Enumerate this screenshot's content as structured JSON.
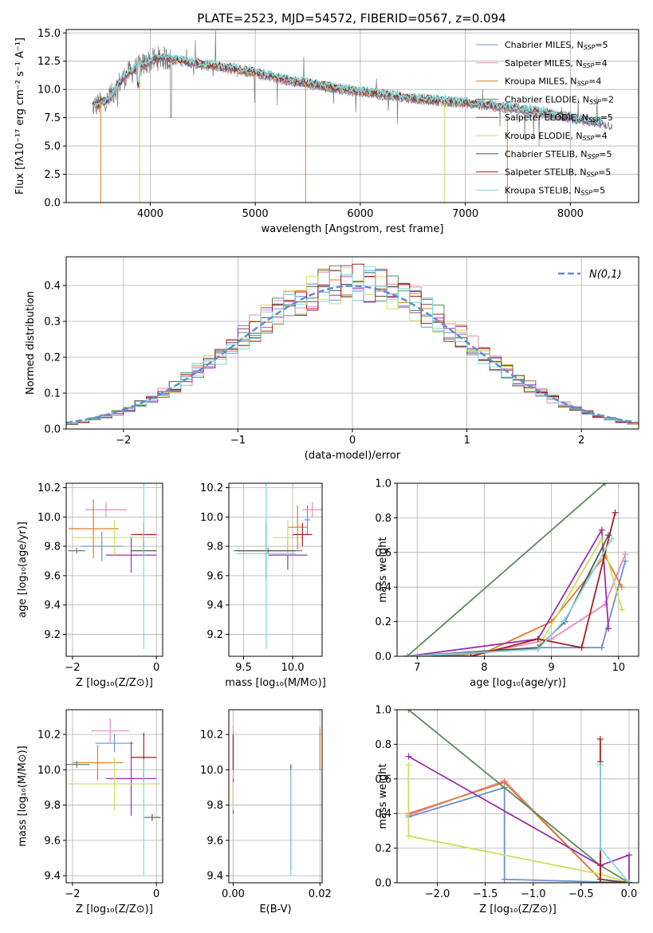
{
  "title": "PLATE=2523, MJD=54572, FIBERID=0567, z=0.094",
  "chart_data": [
    {
      "id": "spectrum",
      "type": "line",
      "xlabel": "wavelength [Angstrom, rest frame]",
      "ylabel": "Flux [fλ10⁻¹⁷ erg cm⁻² s⁻¹ A⁻¹]",
      "xlim": [
        3200,
        8650
      ],
      "ylim": [
        0,
        15.3
      ],
      "xticks": [
        4000,
        5000,
        6000,
        7000,
        8000
      ],
      "yticks": [
        0.0,
        2.5,
        5.0,
        7.5,
        10.0,
        12.5,
        15.0
      ],
      "legend": [
        {
          "label": "Chabrier MILES, N",
          "sub": "SSP",
          "suffix": "=5",
          "color": "#6b8fd6"
        },
        {
          "label": "Salpeter MILES, N",
          "sub": "SSP",
          "suffix": "=4",
          "color": "#e38cbf"
        },
        {
          "label": "Kroupa MILES, N",
          "sub": "SSP",
          "suffix": "=4",
          "color": "#e07b2a"
        },
        {
          "label": "Chabrier ELODIE, N",
          "sub": "SSP",
          "suffix": "=2",
          "color": "#5c8a5c"
        },
        {
          "label": "Salpeter ELODIE, N",
          "sub": "SSP",
          "suffix": "=5",
          "color": "#9b2fb0"
        },
        {
          "label": "Kroupa ELODIE, N",
          "sub": "SSP",
          "suffix": "=4",
          "color": "#c9e05a"
        },
        {
          "label": "Chabrier STELIB, N",
          "sub": "SSP",
          "suffix": "=5",
          "color": "#555555"
        },
        {
          "label": "Salpeter STELIB, N",
          "sub": "SSP",
          "suffix": "=5",
          "color": "#a51f1f"
        },
        {
          "label": "Kroupa STELIB, N",
          "sub": "SSP",
          "suffix": "=5",
          "color": "#7fd8de"
        }
      ],
      "continuum": {
        "x": [
          3450,
          3600,
          3700,
          3800,
          3900,
          4000,
          4100,
          4300,
          4500,
          4800,
          5000,
          5200,
          5500,
          6000,
          6500,
          7000,
          7500,
          8000,
          8400
        ],
        "y": [
          8.5,
          9.0,
          10.5,
          11.5,
          12.0,
          12.5,
          12.8,
          12.5,
          12.2,
          11.8,
          11.5,
          11.0,
          10.5,
          9.8,
          9.2,
          8.8,
          8.3,
          7.5,
          6.8
        ]
      },
      "data_line": {
        "name": "data",
        "color": "#777777"
      }
    },
    {
      "id": "residuals",
      "type": "histogram",
      "xlabel": "(data-model)/error",
      "ylabel": "Normed distribution",
      "xlim": [
        -2.5,
        2.5
      ],
      "ylim": [
        0,
        0.48
      ],
      "xticks": [
        -2,
        -1,
        0,
        1,
        2
      ],
      "yticks": [
        0.0,
        0.1,
        0.2,
        0.3,
        0.4
      ],
      "legend": "N(0,1)",
      "gaussian": {
        "mean": 0,
        "sigma": 1,
        "color": "#5b8fd8"
      },
      "bin_width": 0.1
    },
    {
      "id": "age-vs-Z",
      "type": "scatter",
      "xlabel": "Z [log₁₀(Z/Z⊙)]",
      "ylabel": "age  [log₁₀(age/yr)]",
      "xlim": [
        -2.15,
        0.15
      ],
      "ylim": [
        9.05,
        10.23
      ],
      "xticks": [
        -2,
        0
      ],
      "yticks": [
        9.2,
        9.4,
        9.6,
        9.8,
        10.0,
        10.2
      ],
      "points": [
        {
          "x": -1.3,
          "y": 9.8,
          "xerr": 0.5,
          "yerr": 0.1,
          "color": "#6b8fd6"
        },
        {
          "x": -1.2,
          "y": 10.05,
          "xerr": 0.5,
          "yerr": 0.05,
          "color": "#e38cbf"
        },
        {
          "x": -1.5,
          "y": 9.92,
          "xerr": 0.6,
          "yerr": 0.2,
          "color": "#e07b2a"
        },
        {
          "x": -1.9,
          "y": 9.77,
          "xerr": 0.2,
          "yerr": 0.02,
          "color": "#5c8a5c"
        },
        {
          "x": -0.6,
          "y": 9.74,
          "xerr": 0.6,
          "yerr": 0.12,
          "color": "#9b2fb0"
        },
        {
          "x": -1.0,
          "y": 9.86,
          "xerr": 1.0,
          "yerr": 0.12,
          "color": "#c9e05a"
        },
        {
          "x": -0.3,
          "y": 9.77,
          "xerr": 0.3,
          "yerr": 0.05,
          "color": "#555555"
        },
        {
          "x": -0.3,
          "y": 9.88,
          "xerr": 0.3,
          "yerr": 0.08,
          "color": "#a51f1f"
        },
        {
          "x": -0.3,
          "y": 9.75,
          "xerr": 0.02,
          "yerr": 0.65,
          "color": "#7fd8de"
        }
      ]
    },
    {
      "id": "age-vs-mass",
      "type": "scatter",
      "xlabel": "mass [log₁₀(M/M⊙)]",
      "ylabel": "",
      "xlim": [
        9.35,
        10.3
      ],
      "ylim": [
        9.05,
        10.23
      ],
      "xticks": [
        9.5,
        10.0
      ],
      "yticks": [
        9.2,
        9.4,
        9.6,
        9.8,
        10.0,
        10.2
      ],
      "points": [
        {
          "x": 10.15,
          "y": 9.98,
          "xerr": 0.03,
          "yerr": 0.1,
          "color": "#6b8fd6"
        },
        {
          "x": 10.2,
          "y": 10.05,
          "xerr": 0.1,
          "yerr": 0.05,
          "color": "#e38cbf"
        },
        {
          "x": 10.05,
          "y": 9.93,
          "xerr": 0.1,
          "yerr": 0.15,
          "color": "#e07b2a"
        },
        {
          "x": 9.75,
          "y": 9.77,
          "xerr": 0.35,
          "yerr": 0.02,
          "color": "#5c8a5c"
        },
        {
          "x": 9.95,
          "y": 9.74,
          "xerr": 0.2,
          "yerr": 0.1,
          "color": "#9b2fb0"
        },
        {
          "x": 9.95,
          "y": 9.86,
          "xerr": 0.15,
          "yerr": 0.12,
          "color": "#c9e05a"
        },
        {
          "x": 9.73,
          "y": 9.77,
          "xerr": 0.3,
          "yerr": 0.2,
          "color": "#555555"
        },
        {
          "x": 10.1,
          "y": 9.88,
          "xerr": 0.1,
          "yerr": 0.08,
          "color": "#a51f1f"
        },
        {
          "x": 9.73,
          "y": 9.75,
          "xerr": 0.3,
          "yerr": 0.65,
          "color": "#7fd8de"
        }
      ]
    },
    {
      "id": "massweight-vs-age",
      "type": "line",
      "xlabel": "age  [log₁₀(age/yr)]",
      "ylabel": "mass weight",
      "xlim": [
        6.7,
        10.3
      ],
      "ylim": [
        0,
        1.0
      ],
      "xticks": [
        7,
        8,
        9,
        10
      ],
      "yticks": [
        0.0,
        0.2,
        0.4,
        0.6,
        0.8,
        1.0
      ],
      "series": [
        {
          "color": "#6b8fd6",
          "x": [
            6.85,
            7.7,
            8.8,
            9.75,
            10.1
          ],
          "y": [
            0.0,
            0.01,
            0.05,
            0.05,
            0.55
          ]
        },
        {
          "color": "#e38cbf",
          "x": [
            6.85,
            8.0,
            9.0,
            9.8,
            10.1
          ],
          "y": [
            0.0,
            0.02,
            0.1,
            0.3,
            0.59
          ]
        },
        {
          "color": "#e07b2a",
          "x": [
            6.85,
            8.0,
            9.0,
            9.8,
            10.05
          ],
          "y": [
            0.0,
            0.02,
            0.2,
            0.58,
            0.4
          ]
        },
        {
          "color": "#5c8a5c",
          "x": [
            6.85,
            9.8
          ],
          "y": [
            0.0,
            1.0
          ]
        },
        {
          "color": "#9b2fb0",
          "x": [
            6.85,
            8.8,
            9.75,
            9.85
          ],
          "y": [
            0.0,
            0.1,
            0.73,
            0.16
          ]
        },
        {
          "color": "#c9e05a",
          "x": [
            6.85,
            8.8,
            9.75,
            10.05
          ],
          "y": [
            0.0,
            0.05,
            0.68,
            0.27
          ]
        },
        {
          "color": "#555555",
          "x": [
            6.85,
            8.8,
            9.2,
            9.85
          ],
          "y": [
            0.0,
            0.05,
            0.2,
            0.7
          ]
        },
        {
          "color": "#a51f1f",
          "x": [
            6.85,
            7.8,
            8.8,
            9.45,
            9.95
          ],
          "y": [
            0.0,
            0.0,
            0.1,
            0.05,
            0.83
          ]
        },
        {
          "color": "#7fd8de",
          "x": [
            6.85,
            8.8,
            9.2,
            9.9
          ],
          "y": [
            0.0,
            0.04,
            0.21,
            0.68
          ]
        }
      ]
    },
    {
      "id": "mass-vs-Z",
      "type": "scatter",
      "xlabel": "Z [log₁₀(Z/Z⊙)]",
      "ylabel": "mass [log₁₀(M/M⊙)]",
      "xlim": [
        -2.15,
        0.15
      ],
      "ylim": [
        9.36,
        10.34
      ],
      "xticks": [
        -2,
        0
      ],
      "yticks": [
        9.4,
        9.6,
        9.8,
        10.0,
        10.2
      ],
      "points": [
        {
          "x": -1.0,
          "y": 10.15,
          "xerr": 0.45,
          "yerr": 0.05,
          "color": "#6b8fd6"
        },
        {
          "x": -1.1,
          "y": 10.22,
          "xerr": 0.45,
          "yerr": 0.07,
          "color": "#e38cbf"
        },
        {
          "x": -1.4,
          "y": 10.04,
          "xerr": 0.6,
          "yerr": 0.1,
          "color": "#e07b2a"
        },
        {
          "x": -1.9,
          "y": 10.03,
          "xerr": 0.3,
          "yerr": 0.02,
          "color": "#5c8a5c"
        },
        {
          "x": -0.6,
          "y": 9.95,
          "xerr": 0.6,
          "yerr": 0.21,
          "color": "#9b2fb0"
        },
        {
          "x": -1.0,
          "y": 9.92,
          "xerr": 1.1,
          "yerr": 0.15,
          "color": "#c9e05a"
        },
        {
          "x": -0.1,
          "y": 9.73,
          "xerr": 0.2,
          "yerr": 0.02,
          "color": "#555555"
        },
        {
          "x": -0.3,
          "y": 10.07,
          "xerr": 0.3,
          "yerr": 0.14,
          "color": "#a51f1f"
        },
        {
          "x": -0.3,
          "y": 9.73,
          "xerr": 0.02,
          "yerr": 0.33,
          "color": "#7fd8de"
        }
      ]
    },
    {
      "id": "mass-vs-EBV",
      "type": "scatter",
      "xlabel": "E(B-V)",
      "ylabel": "",
      "xlim": [
        -0.001,
        0.0205
      ],
      "ylim": [
        9.36,
        10.34
      ],
      "xticks": [
        0.0,
        0.02
      ],
      "xtick_labels": [
        "0.00",
        "0.02"
      ],
      "yticks": [
        9.4,
        9.6,
        9.8,
        10.0,
        10.2
      ],
      "points": [
        {
          "x": 0.0,
          "y": 10.1,
          "xerr": 0,
          "yerr": 0.15,
          "color": "#e38cbf"
        },
        {
          "x": 0.0,
          "y": 10.1,
          "xerr": 0,
          "yerr": 0.1,
          "color": "#a51f1f"
        },
        {
          "x": 0.0,
          "y": 9.85,
          "xerr": 0,
          "yerr": 0.1,
          "color": "#9b2fb0"
        },
        {
          "x": 0.0,
          "y": 9.85,
          "xerr": 0,
          "yerr": 0.08,
          "color": "#c9e05a"
        },
        {
          "x": 0.0133,
          "y": 9.73,
          "xerr": 0,
          "yerr": 0.3,
          "color": "#555555"
        },
        {
          "x": 0.0133,
          "y": 9.7,
          "xerr": 0,
          "yerr": 0.3,
          "color": "#7fd8de"
        },
        {
          "x": 0.02,
          "y": 10.12,
          "xerr": 0,
          "yerr": 0.12,
          "color": "#e07b2a"
        }
      ]
    },
    {
      "id": "massweight-vs-Z",
      "type": "line",
      "xlabel": "Z [log₁₀(Z/Z⊙)]",
      "ylabel": "mass weight",
      "xlim": [
        -2.42,
        0.1
      ],
      "ylim": [
        0,
        1.0
      ],
      "xticks": [
        -2.0,
        -1.5,
        -1.0,
        -0.5,
        0.0
      ],
      "xtick_labels": [
        "−2.0",
        "−1.5",
        "−1.0",
        "−0.5",
        "0.0"
      ],
      "yticks": [
        0.0,
        0.2,
        0.4,
        0.6,
        0.8,
        1.0
      ],
      "series": [
        {
          "color": "#6b8fd6",
          "x": [
            -2.3,
            -1.3,
            -1.3,
            0.0
          ],
          "y": [
            0.38,
            0.55,
            0.02,
            0.0
          ]
        },
        {
          "color": "#e38cbf",
          "x": [
            -2.3,
            -1.3,
            -0.3,
            0.0
          ],
          "y": [
            0.39,
            0.59,
            0.02,
            0.0
          ]
        },
        {
          "color": "#e07b2a",
          "x": [
            -2.3,
            -1.3,
            -0.3,
            0.0
          ],
          "y": [
            0.4,
            0.58,
            0.02,
            0.0
          ]
        },
        {
          "color": "#5c8a5c",
          "x": [
            -2.3,
            -0.3,
            0.0
          ],
          "y": [
            1.0,
            0.1,
            0.0
          ]
        },
        {
          "color": "#9b2fb0",
          "x": [
            -2.3,
            -0.3,
            0.0,
            0.0
          ],
          "y": [
            0.73,
            0.1,
            0.16,
            0.0
          ]
        },
        {
          "color": "#c9e05a",
          "x": [
            -2.3,
            -2.3,
            -0.3,
            0.0
          ],
          "y": [
            0.68,
            0.27,
            0.05,
            0.0
          ]
        },
        {
          "color": "#555555",
          "x": [
            -0.3,
            -0.3,
            0.0
          ],
          "y": [
            0.7,
            0.02,
            0.0
          ]
        },
        {
          "color": "#a51f1f",
          "x": [
            -0.3,
            -0.3,
            0.0
          ],
          "y": [
            0.83,
            0.0,
            0.0
          ]
        },
        {
          "color": "#7fd8de",
          "x": [
            -0.3,
            -0.3,
            0.0
          ],
          "y": [
            0.68,
            0.2,
            0.0
          ]
        }
      ]
    }
  ]
}
